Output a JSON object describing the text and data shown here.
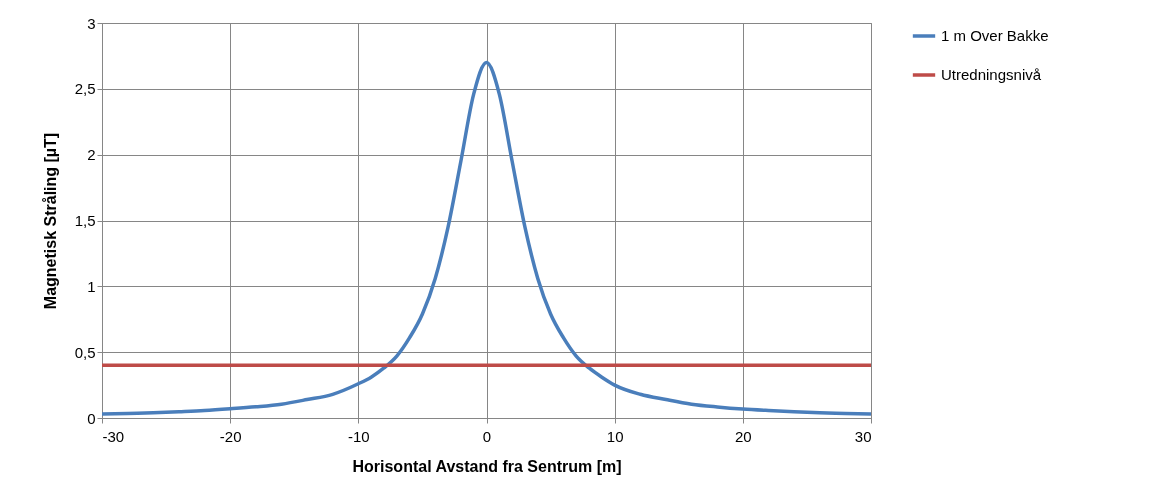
{
  "chart_data": {
    "type": "line",
    "xlabel": "Horisontal Avstand fra Sentrum [m]",
    "ylabel": "Magnetisk Stråling [µT]",
    "x": [
      -30,
      -28,
      -26,
      -24,
      -22,
      -20,
      -18,
      -16,
      -14,
      -12,
      -10,
      -9,
      -8,
      -7,
      -6,
      -5,
      -4,
      -3,
      -2,
      -1,
      0,
      1,
      2,
      3,
      4,
      5,
      6,
      7,
      8,
      9,
      10,
      12,
      14,
      16,
      18,
      20,
      22,
      24,
      26,
      28,
      30
    ],
    "series": [
      {
        "name": "1 m Over Bakke",
        "color": "#4a7ebb",
        "values": [
          0.03,
          0.035,
          0.04,
          0.048,
          0.057,
          0.07,
          0.085,
          0.105,
          0.14,
          0.18,
          0.26,
          0.31,
          0.38,
          0.47,
          0.61,
          0.79,
          1.06,
          1.45,
          1.95,
          2.46,
          2.7,
          2.46,
          1.95,
          1.45,
          1.06,
          0.79,
          0.61,
          0.47,
          0.38,
          0.31,
          0.25,
          0.18,
          0.14,
          0.105,
          0.084,
          0.068,
          0.057,
          0.048,
          0.04,
          0.035,
          0.03
        ]
      },
      {
        "name": "Utredningsnivå",
        "color": "#be4b48",
        "x": [
          -30,
          30
        ],
        "values": [
          0.4,
          0.4
        ]
      }
    ],
    "xlim": [
      -30,
      30
    ],
    "xticks": [
      -30,
      -20,
      -10,
      0,
      10,
      20,
      30
    ],
    "ylim": [
      0,
      3
    ],
    "yticks": [
      0,
      {
        "value": 0.5,
        "label": "0,5"
      },
      1,
      {
        "value": 1.5,
        "label": "1,5"
      },
      2,
      {
        "value": 2.5,
        "label": "2,5"
      },
      3
    ],
    "grid": true,
    "legend": "right",
    "marker": "none",
    "line_style": "solid"
  }
}
